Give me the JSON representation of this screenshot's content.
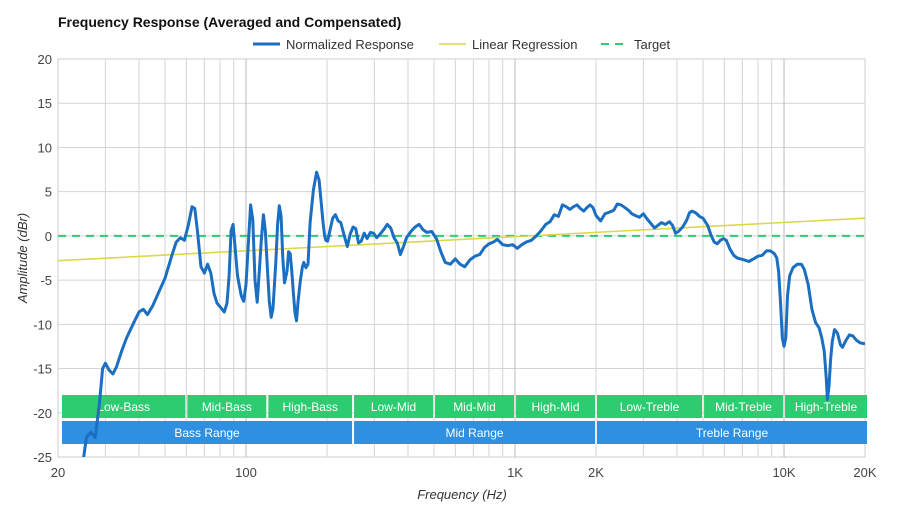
{
  "chart_data": {
    "type": "line",
    "title": "Frequency Response (Averaged and Compensated)",
    "xlabel": "Frequency (Hz)",
    "ylabel": "Amplitude (dBr)",
    "xscale": "log",
    "xlim": [
      20,
      20000
    ],
    "ylim": [
      -25,
      20
    ],
    "yticks": [
      20,
      15,
      10,
      5,
      0,
      -5,
      -10,
      -15,
      -20,
      -25
    ],
    "xticks": [
      {
        "value": 20,
        "label": "20"
      },
      {
        "value": 100,
        "label": "100"
      },
      {
        "value": 1000,
        "label": "1K"
      },
      {
        "value": 2000,
        "label": "2K"
      },
      {
        "value": 10000,
        "label": "10K"
      },
      {
        "value": 20000,
        "label": "20K"
      }
    ],
    "grid": true,
    "legend": [
      {
        "name": "Normalized Response",
        "color": "#1a6fc2",
        "style": "solid"
      },
      {
        "name": "Linear Regression",
        "color": "#d9d94a",
        "style": "solid"
      },
      {
        "name": "Target",
        "color": "#2ecc71",
        "style": "dashed"
      }
    ],
    "series": [
      {
        "name": "Normalized Response",
        "color": "#1a6fc2",
        "points": [
          [
            24.8,
            -25.5
          ],
          [
            25.5,
            -22.8
          ],
          [
            26.5,
            -22.2
          ],
          [
            27.5,
            -22.8
          ],
          [
            28.5,
            -19
          ],
          [
            29.3,
            -15
          ],
          [
            30,
            -14.4
          ],
          [
            31,
            -15.2
          ],
          [
            32,
            -15.6
          ],
          [
            33,
            -14.8
          ],
          [
            34.5,
            -13
          ],
          [
            36,
            -11.5
          ],
          [
            38,
            -10
          ],
          [
            40,
            -8.6
          ],
          [
            41.5,
            -8.3
          ],
          [
            43,
            -8.9
          ],
          [
            45,
            -7.9
          ],
          [
            47,
            -6.6
          ],
          [
            50,
            -4.8
          ],
          [
            53,
            -2.2
          ],
          [
            55,
            -0.7
          ],
          [
            57,
            -0.2
          ],
          [
            59,
            -0.5
          ],
          [
            61,
            1.2
          ],
          [
            63,
            3.3
          ],
          [
            64.5,
            3.1
          ],
          [
            66,
            0.5
          ],
          [
            68,
            -3.5
          ],
          [
            70,
            -4.2
          ],
          [
            72,
            -3.2
          ],
          [
            74,
            -4.2
          ],
          [
            76,
            -6.5
          ],
          [
            78,
            -7.6
          ],
          [
            81,
            -8.2
          ],
          [
            83,
            -8.6
          ],
          [
            85,
            -7.6
          ],
          [
            86.5,
            -4.5
          ],
          [
            88,
            0.6
          ],
          [
            89.5,
            1.3
          ],
          [
            91,
            -1.2
          ],
          [
            93,
            -4.5
          ],
          [
            96,
            -6.8
          ],
          [
            98,
            -7.4
          ],
          [
            100,
            -5.5
          ],
          [
            102,
            -1
          ],
          [
            104,
            3.5
          ],
          [
            106,
            1.8
          ],
          [
            108,
            -5
          ],
          [
            110,
            -7.5
          ],
          [
            112,
            -4
          ],
          [
            114,
            -0.5
          ],
          [
            116,
            2.4
          ],
          [
            118,
            0.5
          ],
          [
            120,
            -3.5
          ],
          [
            122,
            -7.4
          ],
          [
            124,
            -9.2
          ],
          [
            126,
            -8.2
          ],
          [
            129,
            -3
          ],
          [
            131,
            1.3
          ],
          [
            133,
            3.4
          ],
          [
            135,
            2.2
          ],
          [
            137,
            -2.5
          ],
          [
            139,
            -5.3
          ],
          [
            142,
            -4
          ],
          [
            144,
            -1.8
          ],
          [
            146,
            -2
          ],
          [
            148,
            -4
          ],
          [
            150,
            -6.5
          ],
          [
            152,
            -8.6
          ],
          [
            154,
            -9.6
          ],
          [
            156,
            -7.5
          ],
          [
            159,
            -5.2
          ],
          [
            162,
            -3.5
          ],
          [
            164,
            -3
          ],
          [
            167,
            -3.6
          ],
          [
            170,
            -3.2
          ],
          [
            173,
            1.5
          ],
          [
            178,
            5.2
          ],
          [
            183,
            7.2
          ],
          [
            187,
            6.3
          ],
          [
            190,
            4
          ],
          [
            193,
            1.8
          ],
          [
            196,
            0
          ],
          [
            198,
            -0.5
          ],
          [
            201,
            -0.6
          ],
          [
            205,
            0.6
          ],
          [
            210,
            2
          ],
          [
            215,
            2.4
          ],
          [
            220,
            1.7
          ],
          [
            225,
            1.5
          ],
          [
            232,
            0
          ],
          [
            238,
            -1.2
          ],
          [
            244,
            0.2
          ],
          [
            250,
            1
          ],
          [
            256,
            0.8
          ],
          [
            262,
            -0.8
          ],
          [
            268,
            -0.6
          ],
          [
            275,
            0.3
          ],
          [
            282,
            -0.3
          ],
          [
            290,
            0.4
          ],
          [
            298,
            0.3
          ],
          [
            306,
            -0.2
          ],
          [
            315,
            0.2
          ],
          [
            325,
            0.7
          ],
          [
            335,
            1.3
          ],
          [
            345,
            0.9
          ],
          [
            355,
            -0.2
          ],
          [
            365,
            -0.8
          ],
          [
            375,
            -2.1
          ],
          [
            385,
            -1.2
          ],
          [
            395,
            -0.2
          ],
          [
            410,
            0.5
          ],
          [
            425,
            1
          ],
          [
            440,
            1.3
          ],
          [
            455,
            0.7
          ],
          [
            470,
            0.4
          ],
          [
            490,
            0.5
          ],
          [
            510,
            -0.3
          ],
          [
            530,
            -1.8
          ],
          [
            550,
            -3
          ],
          [
            575,
            -3.2
          ],
          [
            600,
            -2.6
          ],
          [
            625,
            -3.2
          ],
          [
            650,
            -3.5
          ],
          [
            680,
            -2.7
          ],
          [
            710,
            -2.3
          ],
          [
            740,
            -2.1
          ],
          [
            770,
            -1.3
          ],
          [
            800,
            -0.9
          ],
          [
            830,
            -0.7
          ],
          [
            860,
            -0.4
          ],
          [
            900,
            -1
          ],
          [
            940,
            -1.1
          ],
          [
            980,
            -1
          ],
          [
            1020,
            -1.4
          ],
          [
            1060,
            -1
          ],
          [
            1100,
            -0.7
          ],
          [
            1150,
            -0.5
          ],
          [
            1200,
            0
          ],
          [
            1250,
            0.6
          ],
          [
            1300,
            1.3
          ],
          [
            1350,
            1.6
          ],
          [
            1400,
            2.4
          ],
          [
            1450,
            2.2
          ],
          [
            1500,
            3.5
          ],
          [
            1550,
            3.3
          ],
          [
            1600,
            3
          ],
          [
            1650,
            3.3
          ],
          [
            1700,
            3.5
          ],
          [
            1750,
            3.1
          ],
          [
            1800,
            2.8
          ],
          [
            1850,
            3.2
          ],
          [
            1900,
            3.5
          ],
          [
            1950,
            3.2
          ],
          [
            2000,
            2.3
          ],
          [
            2080,
            1.7
          ],
          [
            2160,
            2.5
          ],
          [
            2250,
            2.7
          ],
          [
            2330,
            2.9
          ],
          [
            2400,
            3.6
          ],
          [
            2480,
            3.5
          ],
          [
            2560,
            3.2
          ],
          [
            2640,
            2.9
          ],
          [
            2720,
            2.5
          ],
          [
            2800,
            2.3
          ],
          [
            2900,
            2.1
          ],
          [
            3000,
            2.5
          ],
          [
            3100,
            1.9
          ],
          [
            3200,
            1.4
          ],
          [
            3300,
            0.9
          ],
          [
            3400,
            1.2
          ],
          [
            3500,
            1.5
          ],
          [
            3620,
            1.3
          ],
          [
            3750,
            1.6
          ],
          [
            3850,
            1.2
          ],
          [
            3950,
            0.3
          ],
          [
            4050,
            0.5
          ],
          [
            4200,
            1
          ],
          [
            4350,
            1.8
          ],
          [
            4450,
            2.6
          ],
          [
            4550,
            2.8
          ],
          [
            4700,
            2.6
          ],
          [
            4850,
            2.2
          ],
          [
            5000,
            2
          ],
          [
            5200,
            1.2
          ],
          [
            5350,
            0.1
          ],
          [
            5500,
            -0.7
          ],
          [
            5650,
            -0.9
          ],
          [
            5800,
            -0.5
          ],
          [
            5950,
            -0.3
          ],
          [
            6100,
            -0.5
          ],
          [
            6300,
            -1.5
          ],
          [
            6500,
            -2.2
          ],
          [
            6700,
            -2.5
          ],
          [
            6900,
            -2.6
          ],
          [
            7100,
            -2.7
          ],
          [
            7400,
            -2.9
          ],
          [
            7700,
            -2.6
          ],
          [
            8000,
            -2.3
          ],
          [
            8300,
            -2.2
          ],
          [
            8600,
            -1.7
          ],
          [
            8900,
            -1.7
          ],
          [
            9200,
            -2
          ],
          [
            9400,
            -2.5
          ],
          [
            9550,
            -4
          ],
          [
            9700,
            -7.5
          ],
          [
            9850,
            -11.5
          ],
          [
            10000,
            -12.5
          ],
          [
            10150,
            -11.5
          ],
          [
            10300,
            -6.8
          ],
          [
            10500,
            -4.5
          ],
          [
            10800,
            -3.6
          ],
          [
            11200,
            -3.2
          ],
          [
            11600,
            -3.2
          ],
          [
            11900,
            -3.8
          ],
          [
            12300,
            -5.5
          ],
          [
            12700,
            -8.3
          ],
          [
            13100,
            -9.8
          ],
          [
            13500,
            -10.4
          ],
          [
            13800,
            -11.5
          ],
          [
            14100,
            -13
          ],
          [
            14350,
            -16
          ],
          [
            14500,
            -18.5
          ],
          [
            14700,
            -17
          ],
          [
            14900,
            -14
          ],
          [
            15100,
            -12
          ],
          [
            15400,
            -10.6
          ],
          [
            15800,
            -11
          ],
          [
            16200,
            -12.3
          ],
          [
            16500,
            -12.6
          ],
          [
            17000,
            -11.8
          ],
          [
            17500,
            -11.2
          ],
          [
            18000,
            -11.3
          ],
          [
            18600,
            -11.8
          ],
          [
            19200,
            -12.1
          ],
          [
            20000,
            -12.2
          ]
        ]
      },
      {
        "name": "Linear Regression",
        "color": "#d9d94a",
        "points": [
          [
            20,
            -2.8
          ],
          [
            20000,
            2.0
          ]
        ]
      },
      {
        "name": "Target",
        "color": "#2ecc71",
        "points": [
          [
            20,
            0
          ],
          [
            20000,
            0
          ]
        ]
      }
    ],
    "range_bands": [
      [
        {
          "label": "Low-Bass",
          "from": 20,
          "to": 60
        },
        {
          "label": "Mid-Bass",
          "from": 60,
          "to": 120
        },
        {
          "label": "High-Bass",
          "from": 120,
          "to": 250
        },
        {
          "label": "Low-Mid",
          "from": 250,
          "to": 500
        },
        {
          "label": "Mid-Mid",
          "from": 500,
          "to": 1000
        },
        {
          "label": "High-Mid",
          "from": 1000,
          "to": 2000
        },
        {
          "label": "Low-Treble",
          "from": 2000,
          "to": 5000
        },
        {
          "label": "Mid-Treble",
          "from": 5000,
          "to": 10000
        },
        {
          "label": "High-Treble",
          "from": 10000,
          "to": 20000
        }
      ],
      [
        {
          "label": "Bass Range",
          "from": 20,
          "to": 250
        },
        {
          "label": "Mid Range",
          "from": 250,
          "to": 2000
        },
        {
          "label": "Treble Range",
          "from": 2000,
          "to": 20000
        }
      ]
    ],
    "band_colors": [
      "#2ecc71",
      "#2f8fe0"
    ]
  }
}
